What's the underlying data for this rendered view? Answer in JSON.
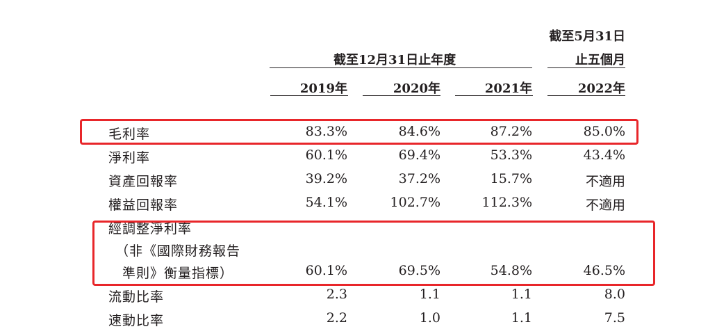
{
  "header": {
    "group_label": "截至12月31日止年度",
    "five_month_line1": "截至5月31日",
    "five_month_line2": "止五個月",
    "years": [
      "2019年",
      "2020年",
      "2021年",
      "2022年"
    ]
  },
  "rows": [
    {
      "label": "毛利率",
      "values": [
        "83.3%",
        "84.6%",
        "87.2%",
        "85.0%"
      ],
      "highlighted": true
    },
    {
      "label": "淨利率",
      "values": [
        "60.1%",
        "69.4%",
        "53.3%",
        "43.4%"
      ]
    },
    {
      "label": "資產回報率",
      "values": [
        "39.2%",
        "37.2%",
        "15.7%",
        "不適用"
      ]
    },
    {
      "label": "權益回報率",
      "values": [
        "54.1%",
        "102.7%",
        "112.3%",
        "不適用"
      ]
    },
    {
      "label_lines": [
        "經調整淨利率",
        "（非《國際財務報告",
        "準則》衡量指標）"
      ],
      "values": [
        "60.1%",
        "69.5%",
        "54.8%",
        "46.5%"
      ],
      "highlighted": true
    },
    {
      "label": "流動比率",
      "values": [
        "2.3",
        "1.1",
        "1.1",
        "8.0"
      ]
    },
    {
      "label": "速動比率",
      "values": [
        "2.2",
        "1.0",
        "1.1",
        "7.5"
      ]
    }
  ],
  "colors": {
    "highlight_box": "#e8262a",
    "text": "#231f20"
  }
}
